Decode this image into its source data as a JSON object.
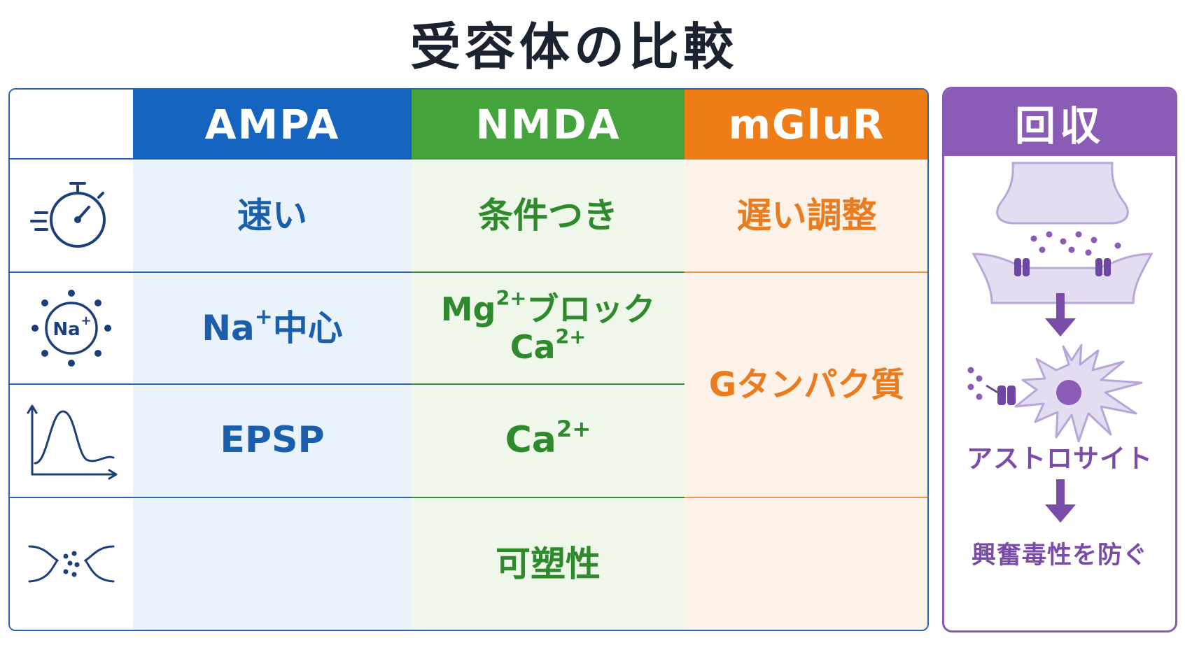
{
  "title": "受容体の比較",
  "colors": {
    "ampa": "#1565c0",
    "nmda": "#45a33c",
    "mglur": "#ef7d17",
    "recycle": "#8b5cb5"
  },
  "row_icons": [
    "stopwatch-icon",
    "sodium-ion-icon",
    "epsp-graph-icon",
    "synapse-icon"
  ],
  "columns": {
    "ampa": {
      "header": "AMPA",
      "speed": "速い",
      "ion_main": "Na",
      "ion_sup": "+",
      "ion_suffix": "中心",
      "effect": "EPSP"
    },
    "nmda": {
      "header": "NMDA",
      "speed": "条件つき",
      "ion_l1_main": "Mg",
      "ion_l1_sup": "2+",
      "ion_l1_suffix": "ブロック",
      "ion_l2_main": "Ca",
      "ion_l2_sup": "2+",
      "effect_main": "Ca",
      "effect_sup": "2+",
      "plasticity": "可塑性"
    },
    "mglur": {
      "header": "mGluR",
      "speed": "遅い調整",
      "mechanism": "Gタンパク質"
    }
  },
  "recycle_panel": {
    "header": "回収",
    "astrocyte_label": "アストロサイト",
    "result": "興奮毒性を防ぐ"
  }
}
